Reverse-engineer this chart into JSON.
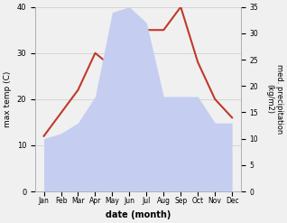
{
  "months": [
    "Jan",
    "Feb",
    "Mar",
    "Apr",
    "May",
    "Jun",
    "Jul",
    "Aug",
    "Sep",
    "Oct",
    "Nov",
    "Dec"
  ],
  "x": [
    1,
    2,
    3,
    4,
    5,
    6,
    7,
    8,
    9,
    10,
    11,
    12
  ],
  "temperature": [
    12,
    17,
    22,
    30,
    27,
    35,
    35,
    35,
    40,
    28,
    20,
    16
  ],
  "precipitation": [
    10,
    11,
    13,
    18,
    34,
    35,
    32,
    18,
    18,
    18,
    13,
    13
  ],
  "temp_color": "#c0392b",
  "precip_color_fill": "#c5cef0",
  "temp_ylim": [
    0,
    40
  ],
  "precip_ylim": [
    0,
    35
  ],
  "temp_yticks": [
    0,
    10,
    20,
    30,
    40
  ],
  "precip_yticks": [
    0,
    5,
    10,
    15,
    20,
    25,
    30,
    35
  ],
  "xlabel": "date (month)",
  "ylabel_left": "max temp (C)",
  "ylabel_right": "med. precipitation (kg/m2)",
  "bg_color": "#f0f0f0",
  "plot_bg_color": "#ffffff"
}
